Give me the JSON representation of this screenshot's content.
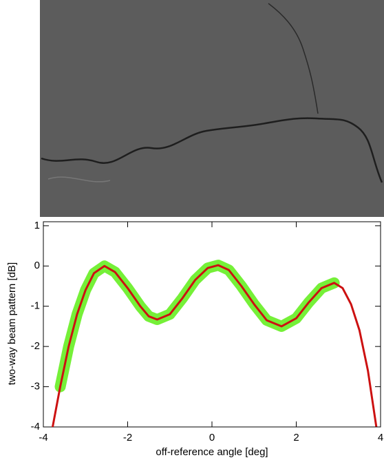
{
  "chart_data": {
    "type": "line",
    "xlabel": "off-reference angle [deg]",
    "ylabel": "two-way beam pattern [dB]",
    "xlim": [
      -4,
      4
    ],
    "ylim": [
      -4,
      1.1
    ],
    "xticks": [
      -4,
      -2,
      0,
      2,
      4
    ],
    "yticks": [
      1,
      0,
      -1,
      -2,
      -3,
      -4
    ],
    "series": [
      {
        "color": "#66ee22",
        "x": [
          -3.6,
          -3.4,
          -3.2,
          -3.0,
          -2.8,
          -2.55,
          -2.3,
          -2.0,
          -1.7,
          -1.5,
          -1.3,
          -1.0,
          -0.7,
          -0.4,
          -0.1,
          0.15,
          0.4,
          0.7,
          1.0,
          1.3,
          1.65,
          2.0,
          2.3,
          2.6,
          2.9
        ],
        "values": [
          -3.0,
          -2.0,
          -1.2,
          -0.6,
          -0.18,
          0.0,
          -0.15,
          -0.55,
          -1.0,
          -1.25,
          -1.33,
          -1.2,
          -0.8,
          -0.35,
          -0.05,
          0.02,
          -0.1,
          -0.5,
          -0.95,
          -1.35,
          -1.5,
          -1.3,
          -0.9,
          -0.55,
          -0.42
        ]
      },
      {
        "color": "#cc1111",
        "x": [
          -3.78,
          -3.6,
          -3.4,
          -3.2,
          -3.0,
          -2.8,
          -2.55,
          -2.3,
          -2.0,
          -1.7,
          -1.5,
          -1.3,
          -1.0,
          -0.7,
          -0.4,
          -0.1,
          0.15,
          0.4,
          0.7,
          1.0,
          1.3,
          1.65,
          2.0,
          2.3,
          2.6,
          2.9,
          3.1,
          3.3,
          3.5,
          3.7,
          3.9
        ],
        "values": [
          -4.0,
          -3.0,
          -2.0,
          -1.2,
          -0.6,
          -0.18,
          0.0,
          -0.15,
          -0.55,
          -1.0,
          -1.25,
          -1.33,
          -1.2,
          -0.8,
          -0.35,
          -0.05,
          0.02,
          -0.1,
          -0.5,
          -0.95,
          -1.35,
          -1.5,
          -1.3,
          -0.9,
          -0.55,
          -0.42,
          -0.55,
          -0.95,
          -1.6,
          -2.6,
          -4.0
        ]
      }
    ]
  }
}
